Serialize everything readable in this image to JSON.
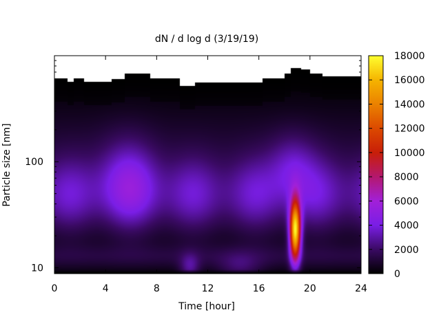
{
  "chart_data": {
    "type": "heatmap",
    "title": "dN / d log d (3/19/19)",
    "xlabel": "Time [hour]",
    "ylabel": "Particle size [nm]",
    "xlim": [
      0,
      24
    ],
    "x_ticks": [
      0,
      4,
      8,
      12,
      16,
      20,
      24
    ],
    "ylim": [
      8.8,
      1000
    ],
    "y_scale": "log",
    "y_tick_labels": [
      {
        "value": 10,
        "label": "10"
      },
      {
        "value": 100,
        "label": "100"
      }
    ],
    "colorbar": {
      "range": [
        0,
        18000
      ],
      "ticks": [
        0,
        2000,
        4000,
        6000,
        8000,
        10000,
        12000,
        14000,
        16000,
        18000
      ],
      "palette": [
        {
          "value": 0,
          "color": "#000000"
        },
        {
          "value": 2000,
          "color": "#3a0a63"
        },
        {
          "value": 4000,
          "color": "#7a1ee6"
        },
        {
          "value": 6000,
          "color": "#a220d8"
        },
        {
          "value": 8000,
          "color": "#b4186e"
        },
        {
          "value": 10000,
          "color": "#c81e08"
        },
        {
          "value": 12000,
          "color": "#dc4a00"
        },
        {
          "value": 14000,
          "color": "#eb8200"
        },
        {
          "value": 16000,
          "color": "#f5b400"
        },
        {
          "value": 18000,
          "color": "#ffff30"
        }
      ]
    },
    "no_data_color": "#ffffff",
    "grid": false,
    "features": [
      {
        "name": "background",
        "time_range": [
          0,
          24
        ],
        "size_nm": 50,
        "peak": 4000
      },
      {
        "name": "morning-mode",
        "time_center": 6,
        "size_nm": 60,
        "peak": 6000
      },
      {
        "name": "event",
        "time_center": 18.8,
        "size_nm": 22,
        "peak": 18000
      }
    ],
    "data_ceiling_nm": [
      [
        0,
        610
      ],
      [
        1,
        570
      ],
      [
        1.5,
        610
      ],
      [
        2.3,
        570
      ],
      [
        4,
        570
      ],
      [
        4.5,
        600
      ],
      [
        5.5,
        680
      ],
      [
        7,
        680
      ],
      [
        7.5,
        610
      ],
      [
        9,
        610
      ],
      [
        9.8,
        520
      ],
      [
        10.8,
        520
      ],
      [
        11,
        560
      ],
      [
        16,
        560
      ],
      [
        16.3,
        610
      ],
      [
        18,
        680
      ],
      [
        18.5,
        760
      ],
      [
        19.3,
        740
      ],
      [
        20,
        680
      ],
      [
        21,
        640
      ],
      [
        24,
        640
      ]
    ]
  }
}
